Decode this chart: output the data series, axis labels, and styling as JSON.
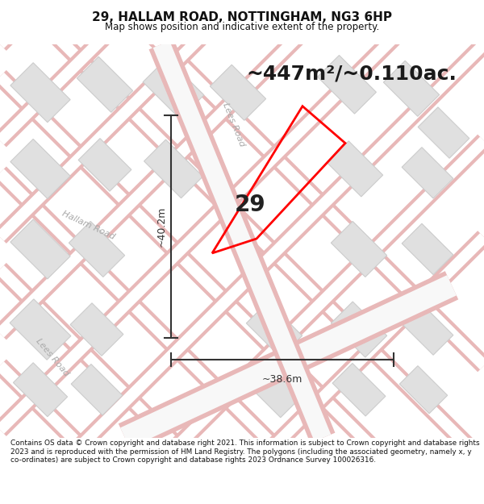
{
  "title": "29, HALLAM ROAD, NOTTINGHAM, NG3 6HP",
  "subtitle": "Map shows position and indicative extent of the property.",
  "area_text": "~447m²/~0.110ac.",
  "property_number": "29",
  "dim_vertical": "~40.2m",
  "dim_horizontal": "~38.6m",
  "footer": "Contains OS data © Crown copyright and database right 2021. This information is subject to Crown copyright and database rights 2023 and is reproduced with the permission of HM Land Registry. The polygons (including the associated geometry, namely x, y co-ordinates) are subject to Crown copyright and database rights 2023 Ordnance Survey 100026316.",
  "map_bg": "#f5f5f5",
  "road_outline_color": "#e8b8b8",
  "building_fc": "#e0e0e0",
  "building_ec": "#cccccc",
  "road_center_color": "#ffffff",
  "property_ec": "#ff0000",
  "arrow_color": "#333333",
  "label_color": "#aaaaaa",
  "title_color": "#111111",
  "footer_color": "#111111"
}
